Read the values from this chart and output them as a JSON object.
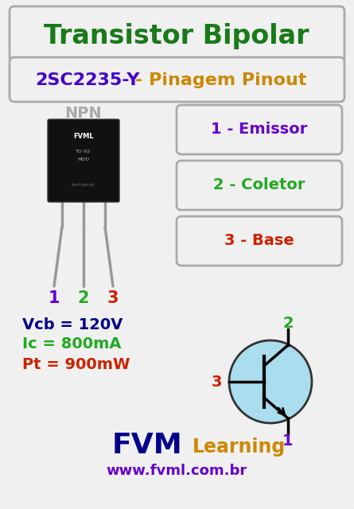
{
  "bg_color": "#d8d8d8",
  "card_color": "#f0f0f0",
  "title1": "Transistor Bipolar",
  "title1_color": "#1a7a1a",
  "title2_part1": "2SC2235-Y",
  "title2_color1": "#4400cc",
  "title2_dash": " - ",
  "title2_dash_color": "#cc8800",
  "title2_part2": "Pinagem Pinout",
  "title2_color2": "#cc8800",
  "npn_label": "NPN",
  "npn_color": "#aaaaaa",
  "pin_labels": [
    "1 - Emissor",
    "2 - Coletor",
    "3 - Base"
  ],
  "pin_colors": [
    "#6600cc",
    "#22aa22",
    "#cc2200"
  ],
  "pin_numbers_colors": [
    "#6600cc",
    "#22aa22",
    "#cc2200"
  ],
  "bottom_numbers": [
    "1",
    "2",
    "3"
  ],
  "vcb_text": "Vcb = 120V",
  "vcb_color": "#00008B",
  "ic_text": "Ic = 800mA",
  "ic_color": "#22aa22",
  "pt_text": "Pt = 900mW",
  "pt_color": "#cc2200",
  "fvm_color": "#00008B",
  "learning_color": "#cc8800",
  "website": "www.fvml.com.br",
  "website_color": "#6600cc",
  "transistor_circle_color": "#aaddee",
  "transistor_circle_edge": "#333333",
  "border_color": "#aaaaaa"
}
